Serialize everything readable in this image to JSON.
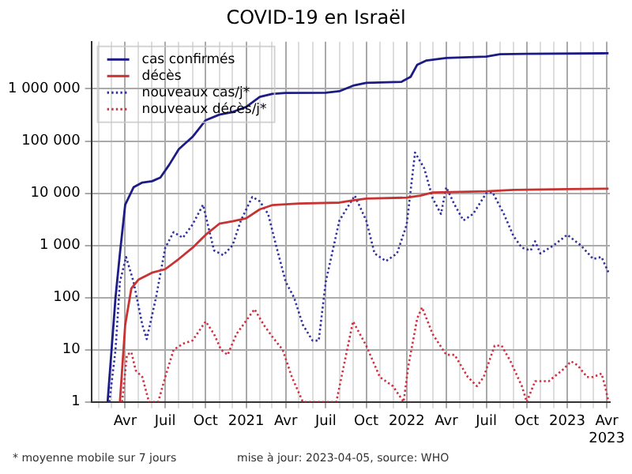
{
  "chart_data": {
    "type": "line",
    "title": "COVID-19 en Israël",
    "log": "y",
    "grid": true,
    "legend": "top left",
    "marker": "none",
    "ylim": [
      1,
      8000000
    ],
    "yticks": [
      1,
      10,
      100,
      {
        "value": 1000,
        "label": "1 000"
      },
      {
        "value": 10000,
        "label": "10 000"
      },
      {
        "value": 100000,
        "label": "100 000"
      },
      {
        "value": 1000000,
        "label": "1 000 000"
      }
    ],
    "xlim": [
      "2020-01-15",
      "2023-04-08"
    ],
    "xticks": [
      {
        "value": "2020-02",
        "label": null
      },
      {
        "value": "2020-03",
        "label": null
      },
      {
        "value": "2020-04",
        "label": "Avr"
      },
      {
        "value": "2020-05",
        "label": null
      },
      {
        "value": "2020-06",
        "label": null
      },
      {
        "value": "2020-07",
        "label": "Juil"
      },
      {
        "value": "2020-08",
        "label": null
      },
      {
        "value": "2020-09",
        "label": null
      },
      {
        "value": "2020-10",
        "label": "Oct"
      },
      {
        "value": "2020-11",
        "label": null
      },
      {
        "value": "2020-12",
        "label": null
      },
      {
        "value": "2021-01",
        "label": "2021"
      },
      {
        "value": "2021-02",
        "label": null
      },
      {
        "value": "2021-03",
        "label": null
      },
      {
        "value": "2021-04",
        "label": "Avr"
      },
      {
        "value": "2021-05",
        "label": null
      },
      {
        "value": "2021-06",
        "label": null
      },
      {
        "value": "2021-07",
        "label": "Juil"
      },
      {
        "value": "2021-08",
        "label": null
      },
      {
        "value": "2021-09",
        "label": null
      },
      {
        "value": "2021-10",
        "label": "Oct"
      },
      {
        "value": "2021-11",
        "label": null
      },
      {
        "value": "2021-12",
        "label": null
      },
      {
        "value": "2022-01",
        "label": "2022"
      },
      {
        "value": "2022-02",
        "label": null
      },
      {
        "value": "2022-03",
        "label": null
      },
      {
        "value": "2022-04",
        "label": "Avr"
      },
      {
        "value": "2022-05",
        "label": null
      },
      {
        "value": "2022-06",
        "label": null
      },
      {
        "value": "2022-07",
        "label": "Juil"
      },
      {
        "value": "2022-08",
        "label": null
      },
      {
        "value": "2022-09",
        "label": null
      },
      {
        "value": "2022-10",
        "label": "Oct"
      },
      {
        "value": "2022-11",
        "label": null
      },
      {
        "value": "2022-12",
        "label": null
      },
      {
        "value": "2023-01",
        "label": "2023"
      },
      {
        "value": "2023-02",
        "label": null
      },
      {
        "value": "2023-03",
        "label": null
      },
      {
        "value": "2023-04",
        "label": "Avr 2023"
      }
    ],
    "annotations": [
      "* moyenne mobile sur 7 jours",
      "mise à jour: 2023-04-05, source: WHO"
    ],
    "series": [
      {
        "name": "cas confirmés",
        "color": "#1c1c84",
        "line_style": "solid",
        "x": [
          "2020-02-21",
          "2020-03-01",
          "2020-03-10",
          "2020-03-20",
          "2020-04-01",
          "2020-04-20",
          "2020-05-10",
          "2020-06-01",
          "2020-06-20",
          "2020-07-10",
          "2020-08-01",
          "2020-09-01",
          "2020-10-01",
          "2020-11-01",
          "2020-12-01",
          "2021-01-01",
          "2021-02-01",
          "2021-03-01",
          "2021-04-01",
          "2021-07-01",
          "2021-08-01",
          "2021-09-01",
          "2021-10-01",
          "2021-12-20",
          "2022-01-10",
          "2022-01-25",
          "2022-02-15",
          "2022-04-01",
          "2022-07-01",
          "2022-08-01",
          "2022-10-01",
          "2023-04-05"
        ],
        "values": [
          1,
          10,
          100,
          700,
          6000,
          13000,
          16000,
          17000,
          20000,
          35000,
          70000,
          120000,
          250000,
          320000,
          360000,
          450000,
          700000,
          800000,
          836000,
          840000,
          900000,
          1150000,
          1300000,
          1360000,
          1700000,
          2900000,
          3500000,
          3900000,
          4150000,
          4600000,
          4700000,
          4800000
        ]
      },
      {
        "name": "décès",
        "color": "#c83232",
        "line_style": "solid",
        "x": [
          "2020-03-20",
          "2020-04-01",
          "2020-04-15",
          "2020-05-01",
          "2020-06-01",
          "2020-07-01",
          "2020-08-01",
          "2020-09-01",
          "2020-10-01",
          "2020-11-01",
          "2020-12-01",
          "2021-01-01",
          "2021-02-01",
          "2021-03-01",
          "2021-05-01",
          "2021-08-01",
          "2021-09-01",
          "2021-10-01",
          "2022-01-01",
          "2022-02-01",
          "2022-03-01",
          "2022-07-01",
          "2022-09-01",
          "2023-01-01",
          "2023-04-05"
        ],
        "values": [
          1,
          30,
          150,
          220,
          300,
          350,
          550,
          900,
          1600,
          2600,
          2900,
          3300,
          4900,
          5900,
          6350,
          6600,
          7300,
          7900,
          8240,
          9000,
          10300,
          10900,
          11600,
          12000,
          12200
        ]
      },
      {
        "name": "nouveaux cas/j*",
        "color": "#3030a0",
        "line_style": "dotted",
        "x": [
          "2020-02-25",
          "2020-03-10",
          "2020-03-20",
          "2020-04-03",
          "2020-04-20",
          "2020-05-10",
          "2020-05-20",
          "2020-06-10",
          "2020-07-01",
          "2020-07-20",
          "2020-08-10",
          "2020-09-01",
          "2020-09-25",
          "2020-10-20",
          "2020-11-10",
          "2020-12-01",
          "2020-12-20",
          "2021-01-15",
          "2021-02-01",
          "2021-02-20",
          "2021-03-10",
          "2021-04-01",
          "2021-04-20",
          "2021-05-10",
          "2021-06-01",
          "2021-06-15",
          "2021-07-01",
          "2021-08-01",
          "2021-09-05",
          "2021-10-01",
          "2021-10-20",
          "2021-11-15",
          "2021-12-10",
          "2022-01-01",
          "2022-01-20",
          "2022-02-10",
          "2022-03-01",
          "2022-03-20",
          "2022-04-01",
          "2022-04-20",
          "2022-05-10",
          "2022-06-01",
          "2022-07-01",
          "2022-07-15",
          "2022-08-10",
          "2022-09-01",
          "2022-09-20",
          "2022-10-10",
          "2022-10-20",
          "2022-11-01",
          "2022-12-01",
          "2023-01-01",
          "2023-02-01",
          "2023-03-01",
          "2023-03-20",
          "2023-04-05"
        ],
        "values": [
          1,
          10,
          200,
          600,
          200,
          30,
          16,
          100,
          900,
          1800,
          1400,
          2500,
          6000,
          800,
          650,
          1000,
          3000,
          8500,
          7000,
          4000,
          1000,
          200,
          100,
          30,
          15,
          15,
          200,
          3000,
          9000,
          3000,
          700,
          500,
          700,
          2500,
          60000,
          30000,
          8000,
          4000,
          13000,
          6000,
          3000,
          4000,
          10000,
          10500,
          4000,
          1500,
          900,
          800,
          1200,
          700,
          1000,
          1600,
          1000,
          550,
          600,
          300
        ]
      },
      {
        "name": "nouveaux décès/j*",
        "color": "#d03040",
        "line_style": "dotted",
        "x": [
          "2020-03-25",
          "2020-04-05",
          "2020-04-15",
          "2020-04-25",
          "2020-05-10",
          "2020-05-25",
          "2020-06-15",
          "2020-07-01",
          "2020-07-20",
          "2020-08-10",
          "2020-09-01",
          "2020-10-01",
          "2020-10-20",
          "2020-11-05",
          "2020-11-20",
          "2020-12-10",
          "2021-01-20",
          "2021-02-10",
          "2021-03-01",
          "2021-03-25",
          "2021-04-15",
          "2021-05-10",
          "2021-07-25",
          "2021-09-01",
          "2021-10-01",
          "2021-11-01",
          "2021-12-01",
          "2021-12-25",
          "2022-01-05",
          "2022-01-25",
          "2022-02-05",
          "2022-03-01",
          "2022-04-01",
          "2022-04-20",
          "2022-05-20",
          "2022-06-10",
          "2022-06-25",
          "2022-07-20",
          "2022-08-05",
          "2022-08-25",
          "2022-09-20",
          "2022-10-01",
          "2022-10-20",
          "2022-11-20",
          "2022-12-20",
          "2023-01-10",
          "2023-01-25",
          "2023-02-15",
          "2023-03-01",
          "2023-03-20",
          "2023-03-28",
          "2023-04-05"
        ],
        "values": [
          1,
          8,
          9,
          4,
          3,
          1,
          1,
          3,
          10,
          13,
          15,
          35,
          20,
          10,
          8,
          20,
          60,
          30,
          18,
          10,
          3,
          1,
          1,
          35,
          12,
          3,
          2,
          1,
          5,
          40,
          65,
          20,
          8,
          8,
          3,
          2,
          3,
          12,
          12,
          6,
          2,
          1,
          2.5,
          2.5,
          4,
          6,
          5,
          3,
          3,
          3.5,
          2,
          1
        ]
      }
    ]
  }
}
